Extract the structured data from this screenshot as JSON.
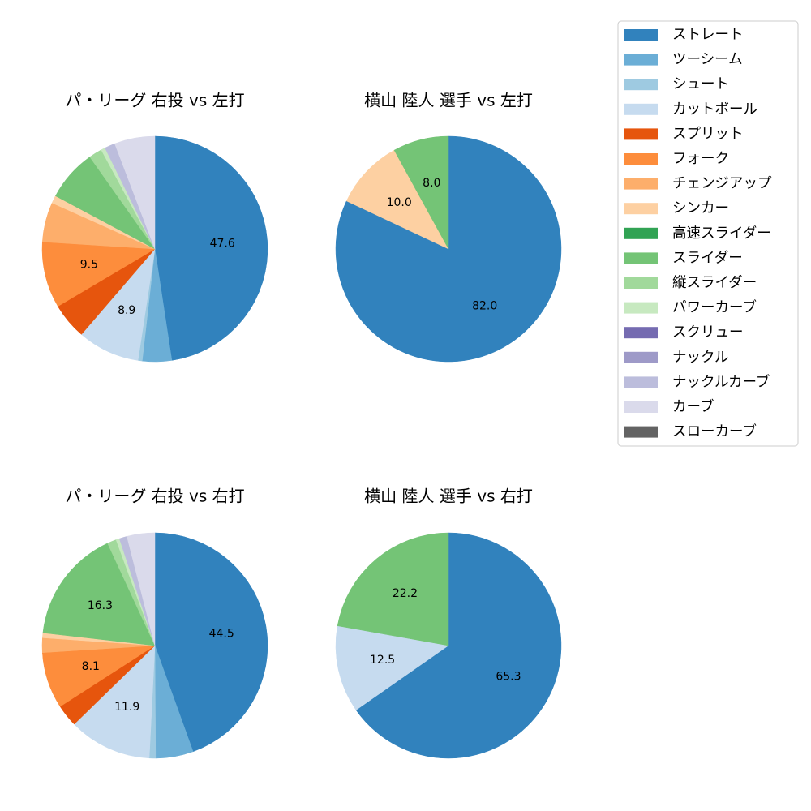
{
  "legend": {
    "items": [
      {
        "label": "ストレート",
        "color": "#3182bd"
      },
      {
        "label": "ツーシーム",
        "color": "#6baed6"
      },
      {
        "label": "シュート",
        "color": "#9ecae1"
      },
      {
        "label": "カットボール",
        "color": "#c6dbef"
      },
      {
        "label": "スプリット",
        "color": "#e6550d"
      },
      {
        "label": "フォーク",
        "color": "#fd8d3c"
      },
      {
        "label": "チェンジアップ",
        "color": "#fdae6b"
      },
      {
        "label": "シンカー",
        "color": "#fdd0a2"
      },
      {
        "label": "高速スライダー",
        "color": "#31a354"
      },
      {
        "label": "スライダー",
        "color": "#74c476"
      },
      {
        "label": "縦スライダー",
        "color": "#a1d99b"
      },
      {
        "label": "パワーカーブ",
        "color": "#c7e9c0"
      },
      {
        "label": "スクリュー",
        "color": "#756bb1"
      },
      {
        "label": "ナックル",
        "color": "#9e9ac8"
      },
      {
        "label": "ナックルカーブ",
        "color": "#bcbddc"
      },
      {
        "label": "カーブ",
        "color": "#dadaeb"
      },
      {
        "label": "スローカーブ",
        "color": "#636363"
      }
    ]
  },
  "chart_data": [
    {
      "type": "pie",
      "title": "パ・リーグ 右投 vs 左打",
      "slices": [
        {
          "label": "ストレート",
          "value": 47.6,
          "color": "#3182bd",
          "show_label": true
        },
        {
          "label": "ツーシーム",
          "value": 4.2,
          "color": "#6baed6",
          "show_label": false
        },
        {
          "label": "シュート",
          "value": 0.6,
          "color": "#9ecae1",
          "show_label": false
        },
        {
          "label": "カットボール",
          "value": 8.9,
          "color": "#c6dbef",
          "show_label": true
        },
        {
          "label": "スプリット",
          "value": 5.2,
          "color": "#e6550d",
          "show_label": false
        },
        {
          "label": "フォーク",
          "value": 9.5,
          "color": "#fd8d3c",
          "show_label": true
        },
        {
          "label": "チェンジアップ",
          "value": 5.7,
          "color": "#fdae6b",
          "show_label": false
        },
        {
          "label": "シンカー",
          "value": 1.1,
          "color": "#fdd0a2",
          "show_label": false
        },
        {
          "label": "スライダー",
          "value": 7.4,
          "color": "#74c476",
          "show_label": false
        },
        {
          "label": "縦スライダー",
          "value": 1.9,
          "color": "#a1d99b",
          "show_label": false
        },
        {
          "label": "パワーカーブ",
          "value": 0.6,
          "color": "#c7e9c0",
          "show_label": false
        },
        {
          "label": "ナックルカーブ",
          "value": 1.5,
          "color": "#bcbddc",
          "show_label": false
        },
        {
          "label": "カーブ",
          "value": 5.8,
          "color": "#dadaeb",
          "show_label": false
        }
      ]
    },
    {
      "type": "pie",
      "title": "横山 陸人 選手 vs 左打",
      "slices": [
        {
          "label": "ストレート",
          "value": 82.0,
          "color": "#3182bd",
          "show_label": true
        },
        {
          "label": "シンカー",
          "value": 10.0,
          "color": "#fdd0a2",
          "show_label": true
        },
        {
          "label": "スライダー",
          "value": 8.0,
          "color": "#74c476",
          "show_label": true
        }
      ]
    },
    {
      "type": "pie",
      "title": "パ・リーグ 右投 vs 右打",
      "slices": [
        {
          "label": "ストレート",
          "value": 44.5,
          "color": "#3182bd",
          "show_label": true
        },
        {
          "label": "ツーシーム",
          "value": 5.4,
          "color": "#6baed6",
          "show_label": false
        },
        {
          "label": "シュート",
          "value": 0.9,
          "color": "#9ecae1",
          "show_label": false
        },
        {
          "label": "カットボール",
          "value": 11.9,
          "color": "#c6dbef",
          "show_label": true
        },
        {
          "label": "スプリット",
          "value": 3.2,
          "color": "#e6550d",
          "show_label": false
        },
        {
          "label": "フォーク",
          "value": 8.1,
          "color": "#fd8d3c",
          "show_label": true
        },
        {
          "label": "チェンジアップ",
          "value": 2.1,
          "color": "#fdae6b",
          "show_label": false
        },
        {
          "label": "シンカー",
          "value": 0.7,
          "color": "#fdd0a2",
          "show_label": false
        },
        {
          "label": "スライダー",
          "value": 16.3,
          "color": "#74c476",
          "show_label": true
        },
        {
          "label": "縦スライダー",
          "value": 1.3,
          "color": "#a1d99b",
          "show_label": false
        },
        {
          "label": "パワーカーブ",
          "value": 0.5,
          "color": "#c7e9c0",
          "show_label": false
        },
        {
          "label": "ナックルカーブ",
          "value": 1.1,
          "color": "#bcbddc",
          "show_label": false
        },
        {
          "label": "カーブ",
          "value": 4.0,
          "color": "#dadaeb",
          "show_label": false
        }
      ]
    },
    {
      "type": "pie",
      "title": "横山 陸人 選手 vs 右打",
      "slices": [
        {
          "label": "ストレート",
          "value": 65.3,
          "color": "#3182bd",
          "show_label": true
        },
        {
          "label": "カットボール",
          "value": 12.5,
          "color": "#c6dbef",
          "show_label": true
        },
        {
          "label": "スライダー",
          "value": 22.2,
          "color": "#74c476",
          "show_label": true
        }
      ]
    }
  ]
}
